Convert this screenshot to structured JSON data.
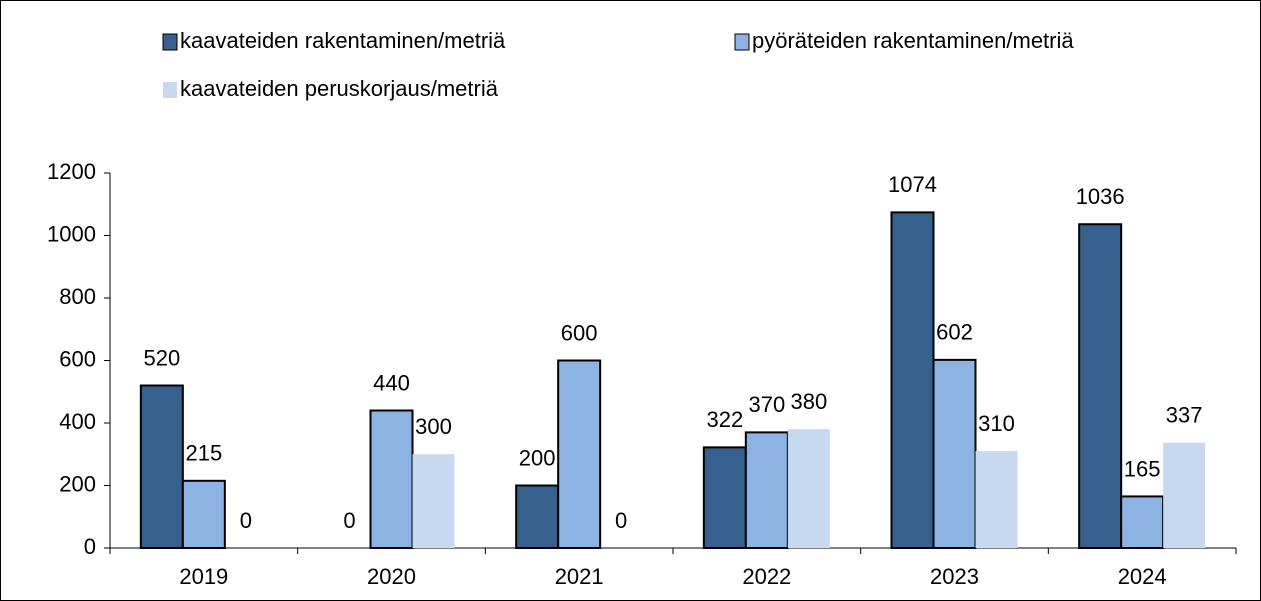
{
  "chart_data": {
    "type": "bar",
    "categories": [
      "2019",
      "2020",
      "2021",
      "2022",
      "2023",
      "2024"
    ],
    "series": [
      {
        "name": "kaavateiden rakentaminen/metriä",
        "color": "#36618f",
        "values": [
          520,
          0,
          200,
          322,
          1074,
          1036
        ]
      },
      {
        "name": "pyöräteiden rakentaminen/metriä",
        "color": "#8db3e2",
        "values": [
          215,
          440,
          600,
          370,
          602,
          165
        ]
      },
      {
        "name": "kaavateiden peruskorjaus/metriä",
        "color": "#c6d9f1",
        "values": [
          0,
          300,
          0,
          380,
          310,
          337
        ]
      }
    ],
    "ylim": [
      0,
      1200
    ],
    "yticks": [
      0,
      200,
      400,
      600,
      800,
      1000,
      1200
    ],
    "legend": "top"
  }
}
